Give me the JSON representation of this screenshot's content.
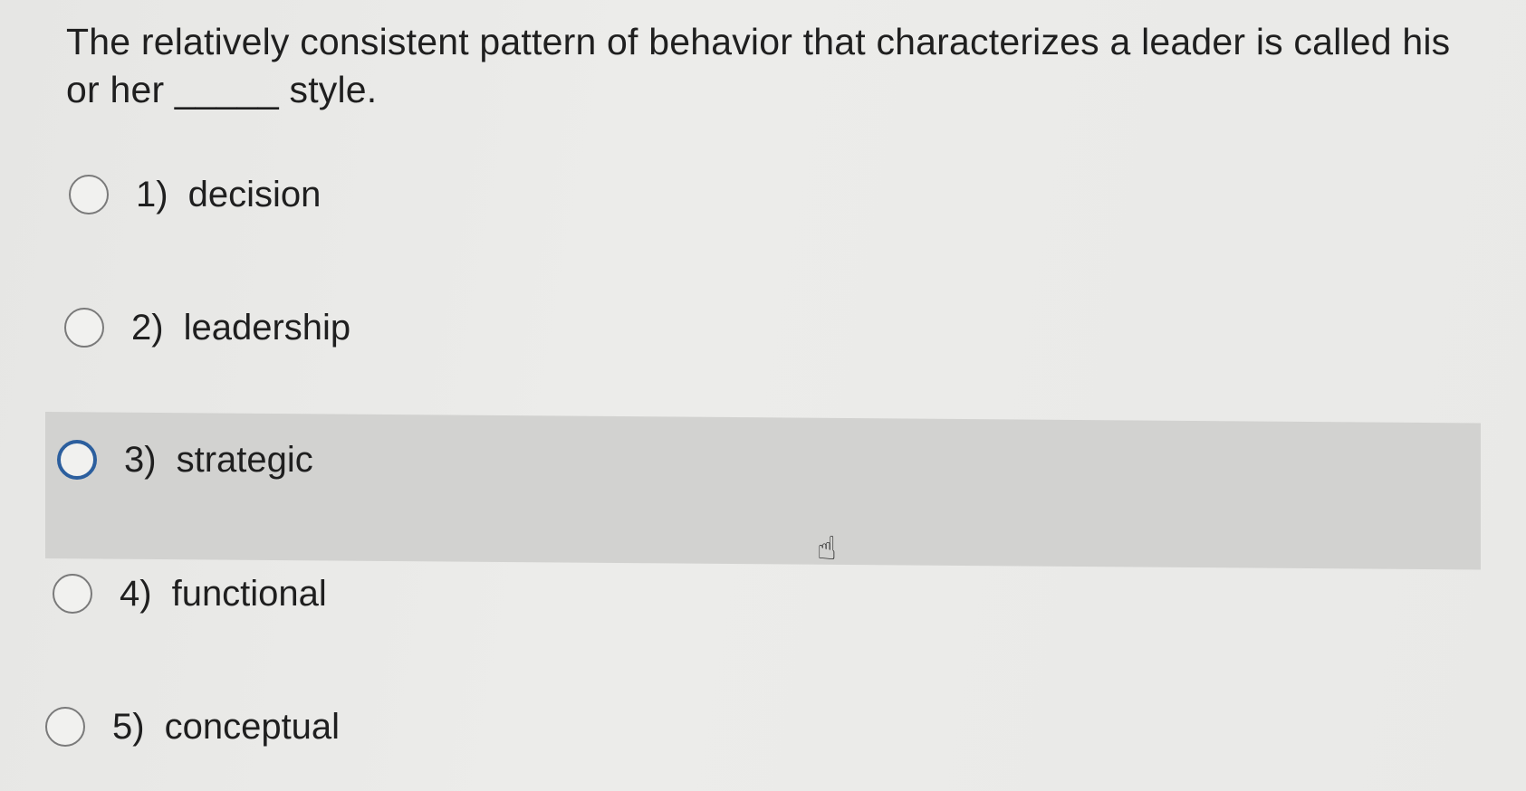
{
  "question": {
    "text": "The relatively consistent pattern of behavior that characterizes a leader is called his or her _____ style."
  },
  "options": [
    {
      "number": "1)",
      "label": "decision"
    },
    {
      "number": "2)",
      "label": "leadership"
    },
    {
      "number": "3)",
      "label": "strategic"
    },
    {
      "number": "4)",
      "label": "functional"
    },
    {
      "number": "5)",
      "label": "conceptual"
    }
  ],
  "hovered_option_index": 2,
  "colors": {
    "focus_ring": "#2c5f9e",
    "hover_band": "#d2d2d0"
  },
  "cursor_icon": "hand-pointer-icon"
}
